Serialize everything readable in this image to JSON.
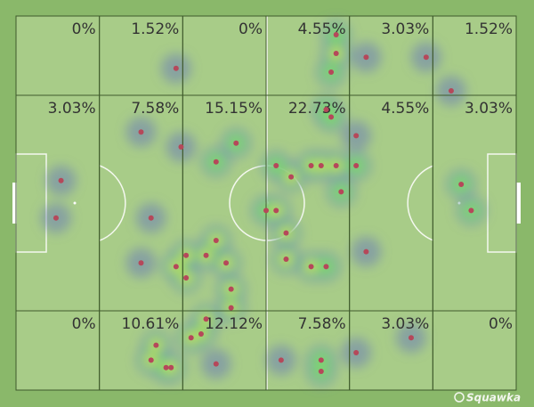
{
  "chart_data": {
    "type": "zone-heatmap",
    "values": [
      [
        0,
        1.52,
        0,
        4.55,
        3.03,
        1.52
      ],
      [
        3.03,
        7.58,
        15.15,
        22.73,
        4.55,
        3.03
      ],
      [
        0,
        10.61,
        12.12,
        7.58,
        3.03,
        0
      ]
    ],
    "value_labels": [
      [
        "0%",
        "1.52%",
        "0%",
        "4.55%",
        "3.03%",
        "1.52%"
      ],
      [
        "3.03%",
        "7.58%",
        "15.15%",
        "22.73%",
        "4.55%",
        "3.03%"
      ],
      [
        "0%",
        "10.61%",
        "12.12%",
        "7.58%",
        "3.03%",
        "0%"
      ]
    ],
    "x": [
      32,
      64,
      64,
      63,
      70,
      82,
      87,
      25,
      33,
      44,
      40,
      52,
      55,
      59,
      61,
      64,
      65,
      68,
      68,
      63,
      62,
      9,
      8,
      89,
      91,
      50,
      52,
      27,
      40,
      34,
      32,
      34,
      38,
      42,
      43,
      25,
      54,
      54,
      59,
      62,
      70,
      38,
      37,
      35,
      43,
      28,
      27,
      30,
      31,
      40,
      53,
      61,
      61,
      68,
      79
    ],
    "y": [
      14,
      5,
      10,
      15,
      11,
      11,
      20,
      31,
      35,
      34,
      39,
      40,
      43,
      40,
      40,
      40,
      47,
      40,
      32,
      27,
      25,
      44,
      54,
      45,
      52,
      52,
      52,
      54,
      60,
      64,
      67,
      70,
      64,
      66,
      73,
      66,
      58,
      65,
      67,
      67,
      63,
      81,
      85,
      86,
      78,
      88,
      92,
      94,
      94,
      93,
      92,
      92,
      95,
      90,
      86
    ],
    "xlim": [
      0,
      100
    ],
    "ylim": [
      0,
      100
    ],
    "color": "#b5485a",
    "watermark": "Squawka"
  }
}
